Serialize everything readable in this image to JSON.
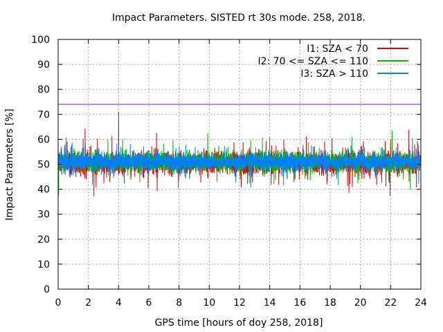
{
  "chart_data": {
    "type": "line",
    "title": "Impact Parameters. SISTED rt 30s mode. 258, 2018.",
    "xlabel": "GPS time [hours of doy 258, 2018]",
    "ylabel": "Impact Parameters [%]",
    "xlim": [
      0,
      24
    ],
    "ylim": [
      0,
      100
    ],
    "xticks": [
      0,
      2,
      4,
      6,
      8,
      10,
      12,
      14,
      16,
      18,
      20,
      22,
      24
    ],
    "yticks": [
      0,
      10,
      20,
      30,
      40,
      50,
      60,
      70,
      80,
      90,
      100
    ],
    "grid": true,
    "legend_position": "top-right",
    "reference_line": {
      "y": 74,
      "color": "#9400d3"
    },
    "series": [
      {
        "name": "I1: SZA < 70",
        "color": "#e00000",
        "mean": 50.5,
        "min": 36,
        "max": 71,
        "spike": {
          "x": 4.0,
          "y": 71
        }
      },
      {
        "name": "I2: 70 <= SZA <= 110",
        "color": "#00b800",
        "mean": 51,
        "min": 36,
        "max": 66
      },
      {
        "name": "I3: SZA > 110",
        "color": "#0080ff",
        "mean": 51,
        "min": 36,
        "max": 63
      }
    ]
  }
}
